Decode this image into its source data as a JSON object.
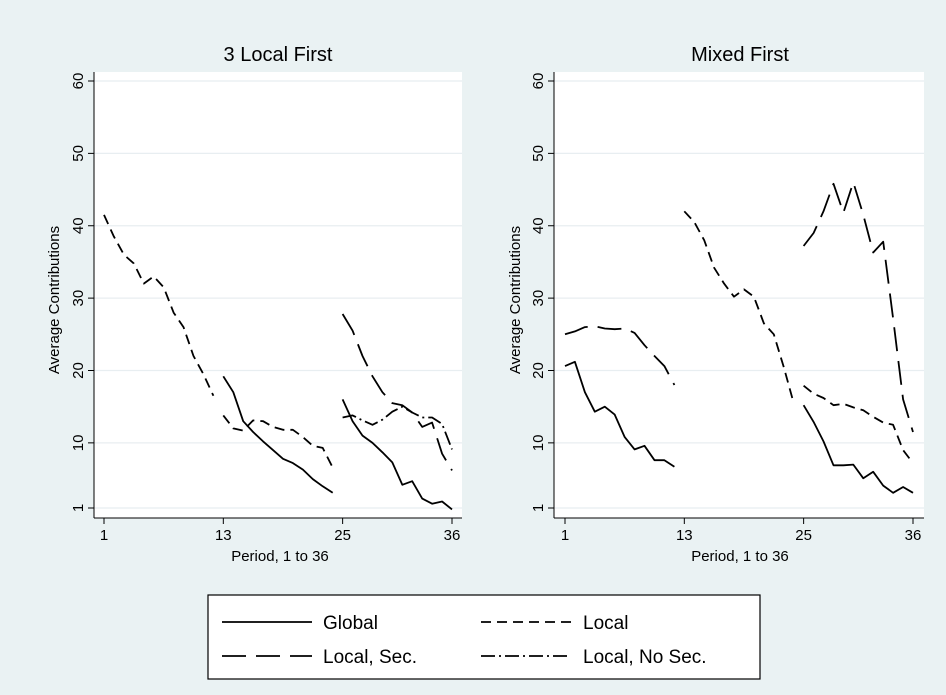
{
  "colors": {
    "page_background": "#eaf2f3",
    "plot_background": "#ffffff",
    "line": "#000000",
    "grid": "#e8eef1"
  },
  "legend": {
    "position": "bottom",
    "entries": [
      {
        "label": "Global",
        "style": "solid"
      },
      {
        "label": "Local",
        "style": "short-dash"
      },
      {
        "label": "Local, Sec.",
        "style": "long-dash"
      },
      {
        "label": "Local, No Sec.",
        "style": "dash-dot"
      }
    ]
  },
  "chart_data": [
    {
      "type": "line",
      "title": "3 Local First",
      "xlabel": "Period, 1 to 36",
      "ylabel": "Average Contributions",
      "xlim": [
        1,
        36
      ],
      "ylim": [
        1,
        60
      ],
      "xticks": [
        1,
        13,
        25,
        36
      ],
      "yticks": [
        1,
        10,
        20,
        30,
        40,
        50,
        60
      ],
      "grid": true,
      "series": [
        {
          "name": "Global",
          "style": "solid",
          "segments": [
            {
              "x": [
                13,
                14,
                15,
                16,
                17,
                18,
                19,
                20,
                21,
                22,
                23,
                24
              ],
              "y": [
                19.2,
                17,
                13,
                11.5,
                10.2,
                9,
                7.8,
                7.2,
                6.3,
                5,
                4,
                3.1
              ]
            },
            {
              "x": [
                25,
                26,
                27,
                28,
                29,
                30,
                31,
                32,
                33,
                34,
                35,
                36
              ],
              "y": [
                16,
                13,
                11,
                10,
                8.7,
                7.3,
                4.2,
                4.7,
                2.3,
                1.6,
                1.9,
                0.8
              ]
            }
          ]
        },
        {
          "name": "Local",
          "style": "short-dash",
          "segments": [
            {
              "x": [
                1,
                2,
                3,
                4,
                5,
                6,
                7,
                8,
                9,
                10,
                11,
                12
              ],
              "y": [
                41.5,
                38.5,
                36,
                34.8,
                32,
                33,
                31.5,
                28,
                26,
                22,
                19.5,
                16.5
              ]
            },
            {
              "x": [
                13,
                14,
                15,
                16,
                17,
                18,
                19,
                20,
                21,
                22,
                23,
                24
              ],
              "y": [
                13.8,
                12,
                11.7,
                13.1,
                13,
                12.2,
                11.8,
                11.8,
                10.8,
                9.6,
                9.3,
                6.6
              ]
            }
          ]
        },
        {
          "name": "Local, Sec.",
          "style": "long-dash",
          "segments": [
            {
              "x": [
                25,
                26,
                27,
                28,
                29,
                30,
                31,
                32,
                33,
                34,
                35,
                36
              ],
              "y": [
                27.8,
                25.5,
                22,
                19.2,
                17,
                15.5,
                15.2,
                14.2,
                12.2,
                12.8,
                8.5,
                6.2
              ]
            }
          ]
        },
        {
          "name": "Local, No Sec.",
          "style": "dash-dot",
          "segments": [
            {
              "x": [
                25,
                26,
                27,
                28,
                29,
                30,
                31,
                32,
                33,
                34,
                35,
                36
              ],
              "y": [
                13.5,
                13.8,
                13.1,
                12.5,
                13.2,
                14.3,
                15,
                14.2,
                13.5,
                13.5,
                12.6,
                9.1
              ]
            }
          ]
        }
      ]
    },
    {
      "type": "line",
      "title": "Mixed First",
      "xlabel": "Period, 1 to 36",
      "ylabel": "Average Contributions",
      "xlim": [
        1,
        36
      ],
      "ylim": [
        1,
        60
      ],
      "xticks": [
        1,
        13,
        25,
        36
      ],
      "yticks": [
        1,
        10,
        20,
        30,
        40,
        50,
        60
      ],
      "grid": true,
      "series": [
        {
          "name": "Global",
          "style": "solid",
          "segments": [
            {
              "x": [
                1,
                2,
                3,
                4,
                5,
                6,
                7,
                8,
                9,
                10,
                11,
                12
              ],
              "y": [
                20.6,
                21.2,
                17,
                14.3,
                15,
                13.9,
                10.8,
                9.1,
                9.6,
                7.6,
                7.6,
                6.7
              ]
            },
            {
              "x": [
                25,
                26,
                27,
                28,
                29,
                30,
                31,
                32,
                33,
                34,
                35,
                36
              ],
              "y": [
                15.2,
                12.9,
                10.2,
                6.9,
                6.9,
                7,
                5.1,
                6,
                4.1,
                3.1,
                3.9,
                3.1
              ]
            }
          ]
        },
        {
          "name": "Local",
          "style": "short-dash",
          "segments": [
            {
              "x": [
                13,
                14,
                15,
                16,
                17,
                18,
                19,
                20,
                21,
                22,
                23,
                24
              ],
              "y": [
                42,
                40.5,
                38,
                34.2,
                32,
                30.2,
                31.2,
                30.2,
                26.5,
                25,
                20.5,
                15.5
              ]
            },
            {
              "x": [
                25,
                26,
                27,
                28,
                29,
                30,
                31,
                32,
                33,
                34,
                35,
                36
              ],
              "y": [
                17.9,
                16.8,
                16.2,
                15.2,
                15.4,
                14.9,
                14.5,
                13.6,
                12.8,
                12.5,
                9,
                7.2
              ]
            }
          ]
        },
        {
          "name": "Local, Sec.",
          "style": "long-dash",
          "segments": [
            {
              "x": [
                1,
                2,
                3,
                4,
                5,
                6,
                7,
                8,
                9,
                10,
                11,
                12
              ],
              "y": [
                25,
                25.4,
                26,
                26.1,
                25.8,
                25.7,
                25.8,
                25.2,
                23.5,
                22,
                20.6,
                18
              ]
            },
            {
              "x": [
                25,
                26,
                27,
                28,
                29,
                30,
                31,
                32,
                33,
                34,
                35,
                36
              ],
              "y": [
                37.2,
                39,
                42,
                45.8,
                41.8,
                46,
                41.5,
                36.3,
                37.8,
                27.2,
                16,
                11.5
              ]
            }
          ]
        },
        {
          "name": "Local, No Sec.",
          "style": "dash-dot",
          "segments": []
        }
      ]
    }
  ]
}
